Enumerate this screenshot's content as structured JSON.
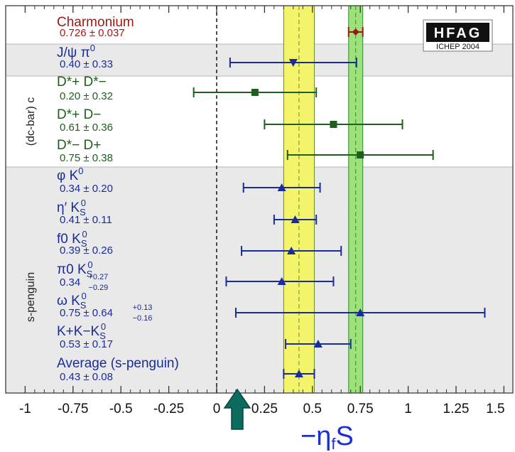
{
  "chart_data": {
    "type": "scatter",
    "title": "",
    "xlabel": "−η_f S",
    "xlim": [
      -1.05,
      1.5
    ],
    "x_ticks": [
      "-1",
      "-0.75",
      "-0.5",
      "-0.25",
      "0",
      "0.25",
      "0.5",
      "0.75",
      "1",
      "1.25",
      "1.5"
    ],
    "x_tick_values": [
      -1,
      -0.75,
      -0.5,
      -0.25,
      0,
      0.25,
      0.5,
      0.75,
      1,
      1.25,
      1.5
    ],
    "logo": {
      "text": "HFAG",
      "subtext": "ICHEP 2004"
    },
    "groups": [
      {
        "label": "(dc-bar) c"
      },
      {
        "label": "s-penguin"
      }
    ],
    "bands": [
      {
        "center": 0.43,
        "err": 0.08,
        "color": "#f4f46a",
        "line": "#6a8a2a"
      },
      {
        "center": 0.726,
        "err": 0.037,
        "color": "#9ee07a",
        "line": "#2e8b2e"
      }
    ],
    "measurements": [
      {
        "name": "Charmonium",
        "name_sup": "",
        "name_sub": "",
        "result": "0.726 ± 0.037",
        "value": 0.726,
        "lo": 0.689,
        "hi": 0.763,
        "marker": "diamond",
        "color": "#a01818"
      },
      {
        "name": "J/ψ π",
        "name_sup": "0",
        "name_sub": "",
        "result": "0.40 ± 0.33",
        "value": 0.4,
        "lo": 0.07,
        "hi": 0.73,
        "marker": "triangle-down",
        "color": "#1a2b9c"
      },
      {
        "name": "D*+ D*−",
        "name_sup": "",
        "name_sub": "",
        "result": "0.20 ± 0.32",
        "value": 0.2,
        "lo": -0.12,
        "hi": 0.52,
        "marker": "square",
        "color": "#1e5e1e"
      },
      {
        "name": "D*+ D−",
        "name_sup": "",
        "name_sub": "",
        "result": "0.61 ± 0.36",
        "value": 0.61,
        "lo": 0.25,
        "hi": 0.97,
        "marker": "square",
        "color": "#1e5e1e"
      },
      {
        "name": "D*− D+",
        "name_sup": "",
        "name_sub": "",
        "result": "0.75 ± 0.38",
        "value": 0.75,
        "lo": 0.37,
        "hi": 1.13,
        "marker": "square",
        "color": "#1e5e1e"
      },
      {
        "name": "φ K",
        "name_sup": "0",
        "name_sub": "",
        "result": "0.34 ± 0.20",
        "value": 0.34,
        "lo": 0.14,
        "hi": 0.54,
        "marker": "triangle-up",
        "color": "#1a2b9c"
      },
      {
        "name": "η′ K",
        "name_sup": "0",
        "name_sub": "S",
        "result": "0.41 ± 0.11",
        "value": 0.41,
        "lo": 0.3,
        "hi": 0.52,
        "marker": "triangle-up",
        "color": "#1a2b9c"
      },
      {
        "name": "f0 K",
        "name_sup": "0",
        "name_sub": "S",
        "result": "0.39 ± 0.26",
        "value": 0.39,
        "lo": 0.13,
        "hi": 0.65,
        "marker": "triangle-up",
        "color": "#1a2b9c"
      },
      {
        "name": "π0 K",
        "name_sup": "0",
        "name_sub": "S",
        "result": "0.34",
        "result_plus": "+0.27",
        "result_minus": "−0.29",
        "value": 0.34,
        "lo": 0.05,
        "hi": 0.61,
        "marker": "triangle-up",
        "color": "#1a2b9c"
      },
      {
        "name": "ω K",
        "name_sup": "0",
        "name_sub": "S",
        "result": "0.75 ± 0.64",
        "result_plus": "+0.13",
        "result_minus": "−0.16",
        "value": 0.75,
        "lo": 0.1,
        "hi": 1.4,
        "marker": "triangle-up",
        "color": "#1a2b9c"
      },
      {
        "name": "K+K−K",
        "name_sup": "0",
        "name_sub": "S",
        "result": "0.53 ± 0.17",
        "value": 0.53,
        "lo": 0.36,
        "hi": 0.7,
        "marker": "triangle-up",
        "color": "#1a2b9c"
      },
      {
        "name": "Average (s-penguin)",
        "name_sup": "",
        "name_sub": "",
        "result": "0.43 ± 0.08",
        "value": 0.43,
        "lo": 0.35,
        "hi": 0.51,
        "marker": "triangle-up",
        "color": "#1a2b9c"
      }
    ],
    "grid": false,
    "legend": "none"
  }
}
